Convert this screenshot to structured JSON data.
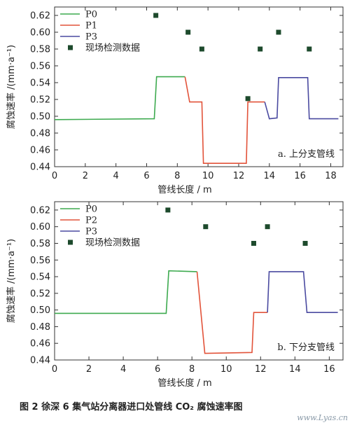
{
  "chart_data": [
    {
      "type": "line",
      "ylabel": "腐蚀速率 /(mm·a⁻¹)",
      "xlabel": "管线长度 / m",
      "annotation": "a. 上分支管线",
      "xlim": [
        0,
        18.8
      ],
      "ylim": [
        0.44,
        0.63
      ],
      "xticks": [
        0,
        2,
        4,
        6,
        8,
        10,
        12,
        14,
        16,
        18
      ],
      "yticks": [
        0.44,
        0.46,
        0.48,
        0.5,
        0.52,
        0.54,
        0.56,
        0.58,
        0.6,
        0.62
      ],
      "legend_position": "top-left",
      "series": [
        {
          "name": "P0",
          "color": "#3daa4f",
          "x": [
            0,
            6.5,
            6.65,
            8.5
          ],
          "y": [
            0.496,
            0.497,
            0.547,
            0.547
          ]
        },
        {
          "name": "P1",
          "color": "#e2533a",
          "x": [
            8.5,
            8.8,
            9.6,
            9.7,
            12.5,
            12.6,
            13.7
          ],
          "y": [
            0.547,
            0.517,
            0.517,
            0.444,
            0.444,
            0.517,
            0.517
          ]
        },
        {
          "name": "P3",
          "color": "#4a4aa0",
          "x": [
            13.7,
            14.0,
            14.5,
            14.6,
            16.5,
            16.6,
            18.5
          ],
          "y": [
            0.517,
            0.497,
            0.498,
            0.546,
            0.546,
            0.497,
            0.497
          ]
        }
      ],
      "scatter": {
        "name": "现场检测数据",
        "color": "#1d4a2c",
        "x": [
          6.6,
          8.7,
          9.6,
          12.6,
          13.4,
          14.6,
          16.6
        ],
        "y": [
          0.62,
          0.6,
          0.58,
          0.521,
          0.58,
          0.6,
          0.58
        ]
      }
    },
    {
      "type": "line",
      "ylabel": "腐蚀速率 /(mm·a⁻¹)",
      "xlabel": "管线长度 / m",
      "annotation": "b. 下分支管线",
      "xlim": [
        0,
        16.8
      ],
      "ylim": [
        0.44,
        0.63
      ],
      "xticks": [
        0,
        2,
        4,
        6,
        8,
        10,
        12,
        14,
        16
      ],
      "yticks": [
        0.44,
        0.46,
        0.48,
        0.5,
        0.52,
        0.54,
        0.56,
        0.58,
        0.6,
        0.62
      ],
      "legend_position": "top-left",
      "series": [
        {
          "name": "P0",
          "color": "#3daa4f",
          "x": [
            0,
            6.5,
            6.65,
            8.3
          ],
          "y": [
            0.496,
            0.496,
            0.547,
            0.546
          ]
        },
        {
          "name": "P2",
          "color": "#e2533a",
          "x": [
            8.3,
            8.75,
            11.5,
            11.6,
            12.4
          ],
          "y": [
            0.546,
            0.448,
            0.449,
            0.497,
            0.497
          ]
        },
        {
          "name": "P3",
          "color": "#4a4aa0",
          "x": [
            12.4,
            12.5,
            14.5,
            14.7,
            16.5
          ],
          "y": [
            0.497,
            0.546,
            0.546,
            0.497,
            0.497
          ]
        }
      ],
      "scatter": {
        "name": "现场检测数据",
        "color": "#1d4a2c",
        "x": [
          6.6,
          8.8,
          11.6,
          12.4,
          14.6
        ],
        "y": [
          0.62,
          0.6,
          0.58,
          0.6,
          0.58
        ]
      }
    }
  ],
  "caption": "图 2    徐深 6 集气站分离器进口处管线 CO₂ 腐蚀速率图",
  "watermark": "www.Lyas.cn"
}
